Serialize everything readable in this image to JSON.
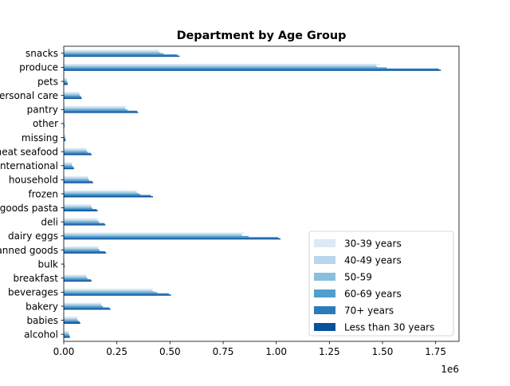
{
  "chart_data": {
    "type": "bar",
    "orientation": "horizontal",
    "title": "Department by Age Group",
    "xlabel": "",
    "ylabel": "",
    "x_offset_label": "1e6",
    "xlim": [
      0,
      1.86
    ],
    "x_ticks": [
      "0.00",
      "0.25",
      "0.50",
      "0.75",
      "1.00",
      "1.25",
      "1.50",
      "1.75"
    ],
    "grid": false,
    "legend_position": "lower-right",
    "categories": [
      "alcohol",
      "babies",
      "bakery",
      "beverages",
      "breakfast",
      "bulk",
      "canned goods",
      "dairy eggs",
      "deli",
      "dry goods pasta",
      "frozen",
      "household",
      "international",
      "meat seafood",
      "missing",
      "other",
      "pantry",
      "personal care",
      "pets",
      "produce",
      "snacks"
    ],
    "series": [
      {
        "name": "30-39 years",
        "color": "#dbe9f6",
        "values": [
          0.024,
          0.065,
          0.178,
          0.42,
          0.108,
          0.003,
          0.164,
          0.85,
          0.162,
          0.13,
          0.345,
          0.115,
          0.039,
          0.108,
          0.007,
          0.003,
          0.292,
          0.075,
          0.015,
          1.49,
          0.45
        ]
      },
      {
        "name": "40-49 years",
        "color": "#bad6eb",
        "values": [
          0.023,
          0.063,
          0.175,
          0.415,
          0.106,
          0.003,
          0.161,
          0.835,
          0.158,
          0.128,
          0.34,
          0.113,
          0.038,
          0.106,
          0.007,
          0.003,
          0.288,
          0.073,
          0.015,
          1.47,
          0.445
        ]
      },
      {
        "name": "50-59",
        "color": "#89bedc",
        "values": [
          0.024,
          0.065,
          0.18,
          0.425,
          0.108,
          0.003,
          0.166,
          0.84,
          0.163,
          0.131,
          0.35,
          0.116,
          0.039,
          0.109,
          0.007,
          0.003,
          0.29,
          0.075,
          0.015,
          1.475,
          0.455
        ]
      },
      {
        "name": "60-69 years",
        "color": "#539ecd",
        "values": [
          0.025,
          0.068,
          0.185,
          0.44,
          0.112,
          0.003,
          0.17,
          0.87,
          0.167,
          0.135,
          0.36,
          0.12,
          0.041,
          0.112,
          0.008,
          0.003,
          0.3,
          0.078,
          0.016,
          1.52,
          0.47
        ]
      },
      {
        "name": "70+ years",
        "color": "#2b7bba",
        "values": [
          0.028,
          0.075,
          0.215,
          0.495,
          0.128,
          0.004,
          0.195,
          1.01,
          0.192,
          0.155,
          0.41,
          0.135,
          0.047,
          0.128,
          0.008,
          0.004,
          0.345,
          0.083,
          0.018,
          1.765,
          0.535
        ]
      },
      {
        "name": "Less than 30 years",
        "color": "#08519c",
        "values": [
          0.029,
          0.078,
          0.22,
          0.505,
          0.131,
          0.004,
          0.2,
          1.02,
          0.196,
          0.16,
          0.42,
          0.138,
          0.048,
          0.131,
          0.009,
          0.004,
          0.35,
          0.085,
          0.019,
          1.775,
          0.545
        ]
      }
    ]
  }
}
